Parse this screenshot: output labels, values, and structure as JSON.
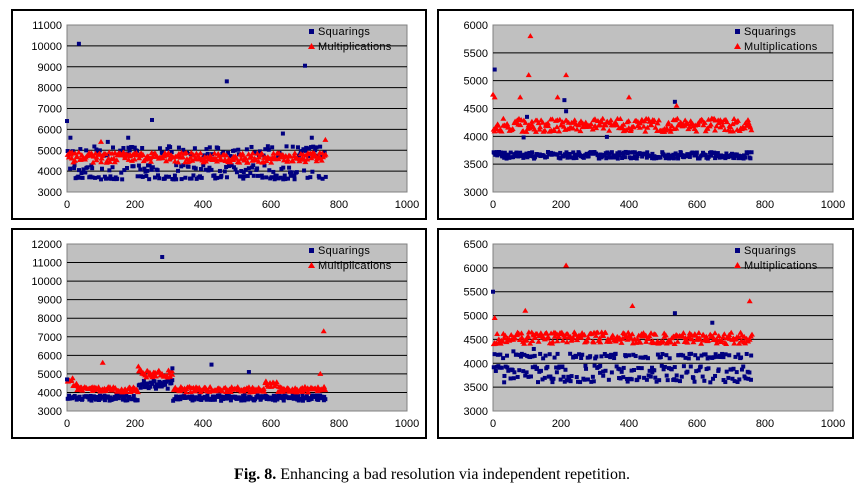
{
  "caption": {
    "label": "Fig. 8.",
    "text": "Enhancing a bad resolution via independent repetition."
  },
  "colors": {
    "plot_bg": "#c0c0c0",
    "squarings": "#000080",
    "multiplications": "#ff0000",
    "gridline": "#000000"
  },
  "chart_data": [
    {
      "type": "scatter",
      "title": "",
      "xlabel": "",
      "ylabel": "",
      "xlim": [
        0,
        1000
      ],
      "ylim": [
        3000,
        11000
      ],
      "xticks": [
        0,
        200,
        400,
        600,
        800,
        1000
      ],
      "yticks": [
        3000,
        4000,
        5000,
        6000,
        7000,
        8000,
        9000,
        10000,
        11000
      ],
      "legend_position": "top-right",
      "series": [
        {
          "name": "Squarings",
          "marker": "square",
          "n_points": 760,
          "bands": [
            [
              3600,
              3800
            ],
            [
              3900,
              4300
            ],
            [
              4700,
              5200
            ]
          ],
          "outliers": [
            [
              0,
              6400
            ],
            [
              10,
              5600
            ],
            [
              35,
              10100
            ],
            [
              120,
              5400
            ],
            [
              180,
              5600
            ],
            [
              250,
              6450
            ],
            [
              470,
              8300
            ],
            [
              635,
              5800
            ],
            [
              700,
              9050
            ],
            [
              720,
              5600
            ]
          ]
        },
        {
          "name": "Multiplications",
          "marker": "triangle",
          "n_points": 760,
          "bands": [
            [
              4400,
              4900
            ]
          ],
          "outliers": [
            [
              100,
              5400
            ],
            [
              760,
              5500
            ]
          ]
        }
      ]
    },
    {
      "type": "scatter",
      "title": "",
      "xlabel": "",
      "ylabel": "",
      "xlim": [
        0,
        1000
      ],
      "ylim": [
        3000,
        6000
      ],
      "xticks": [
        0,
        200,
        400,
        600,
        800,
        1000
      ],
      "yticks": [
        3000,
        3500,
        4000,
        4500,
        5000,
        5500,
        6000
      ],
      "legend_position": "top-right",
      "series": [
        {
          "name": "Squarings",
          "marker": "square",
          "n_points": 760,
          "bands": [
            [
              3600,
              3720
            ]
          ],
          "outliers": [
            [
              5,
              5200
            ],
            [
              100,
              4350
            ],
            [
              210,
              4650
            ],
            [
              215,
              4450
            ],
            [
              535,
              4620
            ],
            [
              335,
              3990
            ],
            [
              90,
              3980
            ]
          ]
        },
        {
          "name": "Multiplications",
          "marker": "triangle",
          "n_points": 760,
          "bands": [
            [
              4080,
              4320
            ]
          ],
          "outliers": [
            [
              0,
              4750
            ],
            [
              5,
              4700
            ],
            [
              110,
              5800
            ],
            [
              105,
              5100
            ],
            [
              215,
              5100
            ],
            [
              80,
              4700
            ],
            [
              190,
              4700
            ],
            [
              400,
              4700
            ],
            [
              540,
              4550
            ]
          ]
        }
      ]
    },
    {
      "type": "scatter",
      "title": "",
      "xlabel": "",
      "ylabel": "",
      "xlim": [
        0,
        1000
      ],
      "ylim": [
        3000,
        12000
      ],
      "xticks": [
        0,
        200,
        400,
        600,
        800,
        1000
      ],
      "yticks": [
        3000,
        4000,
        5000,
        6000,
        7000,
        8000,
        9000,
        10000,
        11000,
        12000
      ],
      "legend_position": "top-right",
      "series": [
        {
          "name": "Squarings",
          "marker": "square",
          "n_points": 760,
          "bands": [
            [
              3550,
              3850
            ]
          ],
          "segments": [
            {
              "x": [
                210,
                310
              ],
              "band": [
                4200,
                4700
              ]
            }
          ],
          "outliers": [
            [
              0,
              4700
            ],
            [
              280,
              11300
            ],
            [
              425,
              5500
            ],
            [
              535,
              5100
            ],
            [
              310,
              5300
            ]
          ]
        },
        {
          "name": "Multiplications",
          "marker": "triangle",
          "n_points": 760,
          "bands": [
            [
              4000,
              4300
            ]
          ],
          "segments": [
            {
              "x": [
                0,
                30
              ],
              "band": [
                4300,
                4800
              ]
            },
            {
              "x": [
                210,
                310
              ],
              "band": [
                4800,
                5200
              ]
            },
            {
              "x": [
                580,
                620
              ],
              "band": [
                4300,
                4600
              ]
            }
          ],
          "outliers": [
            [
              105,
              5600
            ],
            [
              210,
              5400
            ],
            [
              755,
              7300
            ],
            [
              745,
              5000
            ]
          ]
        }
      ]
    },
    {
      "type": "scatter",
      "title": "",
      "xlabel": "",
      "ylabel": "",
      "xlim": [
        0,
        1000
      ],
      "ylim": [
        3000,
        6500
      ],
      "xticks": [
        0,
        200,
        400,
        600,
        800,
        1000
      ],
      "yticks": [
        3000,
        3500,
        4000,
        4500,
        5000,
        5500,
        6000,
        6500
      ],
      "legend_position": "top-right",
      "series": [
        {
          "name": "Squarings",
          "marker": "square",
          "n_points": 760,
          "bands": [
            [
              3600,
              3750
            ],
            [
              3800,
              3950
            ],
            [
              4100,
              4200
            ]
          ],
          "outliers": [
            [
              0,
              5500
            ],
            [
              535,
              5050
            ],
            [
              645,
              4850
            ],
            [
              60,
              4250
            ],
            [
              120,
              4300
            ]
          ]
        },
        {
          "name": "Multiplications",
          "marker": "triangle",
          "n_points": 760,
          "bands": [
            [
              4400,
              4650
            ]
          ],
          "outliers": [
            [
              5,
              4950
            ],
            [
              95,
              5100
            ],
            [
              215,
              6050
            ],
            [
              410,
              5200
            ],
            [
              755,
              5300
            ]
          ]
        }
      ]
    }
  ]
}
